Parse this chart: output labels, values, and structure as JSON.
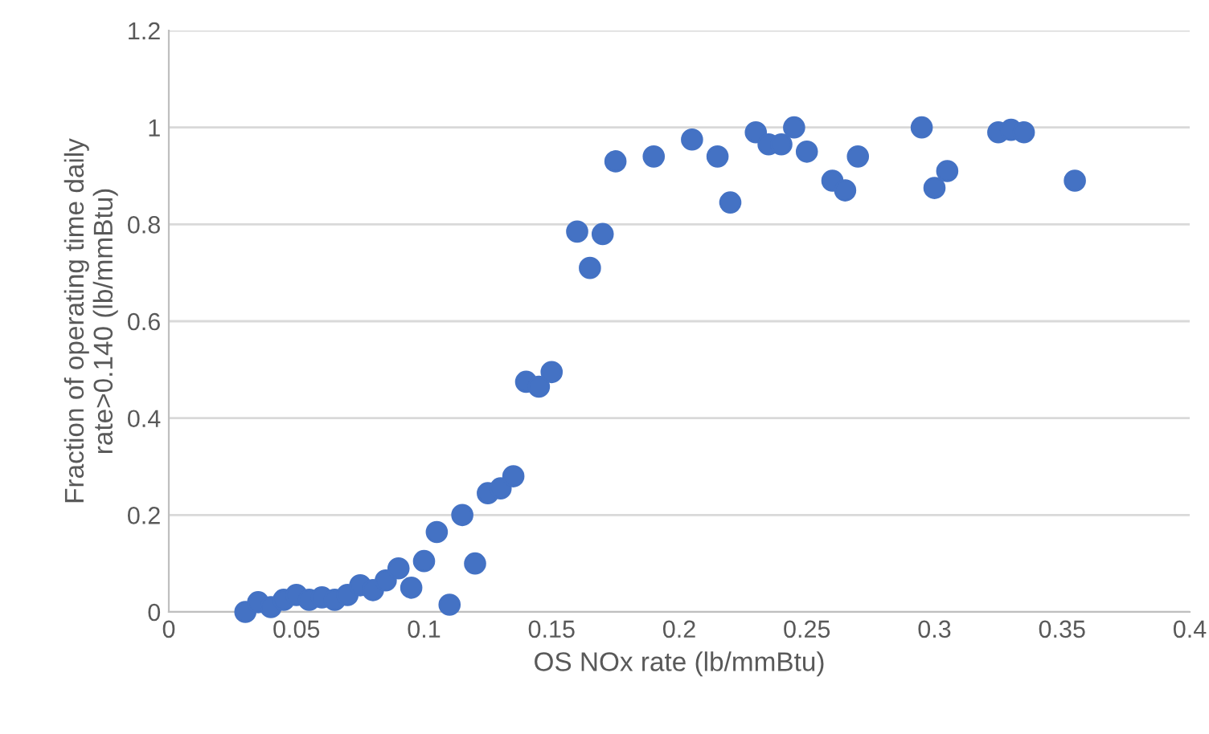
{
  "chart_data": {
    "type": "scatter",
    "xlabel": "OS NOx rate (lb/mmBtu)",
    "ylabel": "Fraction of operating time daily\nrate>0.140 (lb/mmBtu)",
    "series": [
      {
        "color": "#4472c4",
        "x": [
          0.03,
          0.035,
          0.04,
          0.045,
          0.05,
          0.055,
          0.06,
          0.065,
          0.07,
          0.075,
          0.08,
          0.085,
          0.09,
          0.095,
          0.1,
          0.105,
          0.11,
          0.115,
          0.12,
          0.125,
          0.13,
          0.135,
          0.14,
          0.145,
          0.15,
          0.16,
          0.165,
          0.17,
          0.175,
          0.19,
          0.205,
          0.215,
          0.22,
          0.23,
          0.235,
          0.24,
          0.245,
          0.25,
          0.26,
          0.265,
          0.27,
          0.295,
          0.3,
          0.305,
          0.325,
          0.33,
          0.335,
          0.355
        ],
        "values": [
          0.0,
          0.02,
          0.01,
          0.025,
          0.035,
          0.025,
          0.03,
          0.025,
          0.035,
          0.055,
          0.045,
          0.065,
          0.09,
          0.05,
          0.105,
          0.165,
          0.015,
          0.2,
          0.1,
          0.245,
          0.255,
          0.28,
          0.475,
          0.465,
          0.495,
          0.785,
          0.71,
          0.78,
          0.93,
          0.94,
          0.975,
          0.94,
          0.845,
          0.99,
          0.965,
          0.965,
          1.0,
          0.95,
          0.89,
          0.87,
          0.94,
          1.0,
          0.875,
          0.91,
          0.99,
          0.995,
          0.99,
          0.89
        ]
      }
    ],
    "xlim": [
      0,
      0.4
    ],
    "xticks": [
      0,
      0.05,
      0.1,
      0.15,
      0.2,
      0.25,
      0.3,
      0.35,
      0.4
    ],
    "ylim": [
      0,
      1.2
    ],
    "yticks": [
      0,
      0.2,
      0.4,
      0.6,
      0.8,
      1,
      1.2
    ],
    "grid": "y",
    "marker": "circle"
  }
}
